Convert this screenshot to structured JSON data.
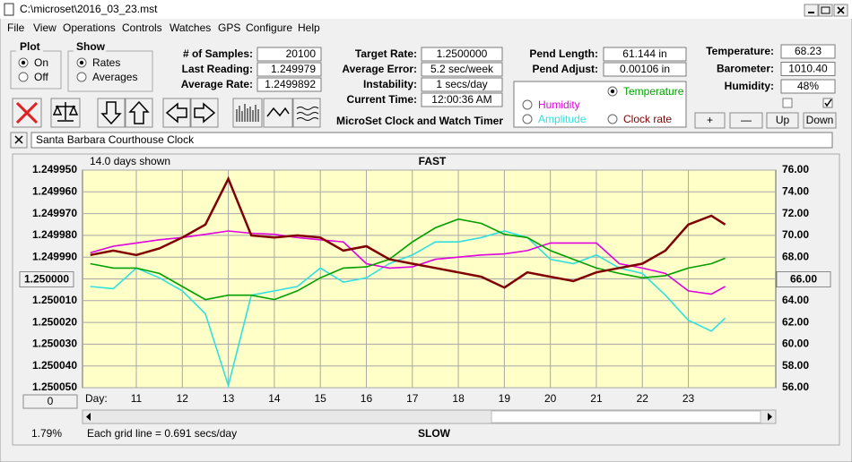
{
  "window": {
    "title": "C:\\microset\\2016_03_23.mst"
  },
  "menu": [
    "File",
    "View",
    "Operations",
    "Controls",
    "Watches",
    "GPS",
    "Configure",
    "Help"
  ],
  "plot_group": {
    "title": "Plot",
    "options": [
      "On",
      "Off"
    ]
  },
  "show_group": {
    "title": "Show",
    "options": [
      "Rates",
      "Averages"
    ]
  },
  "stats": [
    {
      "label": "# of Samples:",
      "value": "20100"
    },
    {
      "label": "Last Reading:",
      "value": "1.249979"
    },
    {
      "label": "Average Rate:",
      "value": "1.2499892"
    }
  ],
  "timing": [
    {
      "label": "Target Rate:",
      "value": "1.2500000"
    },
    {
      "label": "Average Error:",
      "value": "5.2 sec/week"
    },
    {
      "label": "Instability:",
      "value": "1 secs/day"
    },
    {
      "label": "Current Time:",
      "value": "12:00:36 AM"
    }
  ],
  "pendulum": [
    {
      "label": "Pend Length:",
      "value": "61.144 in"
    },
    {
      "label": "Pend Adjust:",
      "value": "0.00106 in"
    }
  ],
  "weather": [
    {
      "label": "Temperature:",
      "value": "68.23"
    },
    {
      "label": "Barometer:",
      "value": "1010.40"
    },
    {
      "label": "Humidity:",
      "value": "48%"
    }
  ],
  "app_title": "MicroSet Clock and Watch Timer",
  "buttons": [
    "+",
    "—",
    "Up",
    "Down"
  ],
  "clock_name": "Santa Barbara Courthouse Clock",
  "footer": {
    "zoom": "0",
    "percent": "1.79%"
  },
  "chart_data": {
    "type": "line",
    "title": "FAST",
    "bottom_label": "SLOW",
    "span_label": "14.0 days shown",
    "grid_note": "Each grid line = 0.691 secs/day",
    "x_label": "Day:",
    "x": [
      10,
      10.5,
      11,
      11.5,
      12,
      12.5,
      13,
      13.5,
      14,
      14.5,
      15,
      15.5,
      16,
      16.5,
      17,
      17.5,
      18,
      18.5,
      19,
      19.5,
      20,
      20.5,
      21,
      21.5,
      22,
      22.5,
      23,
      23.5,
      23.8
    ],
    "xlim": [
      9.83,
      24.9
    ],
    "xticks": [
      11,
      12,
      13,
      14,
      15,
      16,
      17,
      18,
      19,
      20,
      21,
      22,
      23
    ],
    "ylim": [
      1.25005,
      1.24995
    ],
    "yticks": [
      {
        "value": 1.24995,
        "label": "1.249950"
      },
      {
        "value": 1.24996,
        "label": "1.249960"
      },
      {
        "value": 1.24997,
        "label": "1.249970"
      },
      {
        "value": 1.24998,
        "label": "1.249980"
      },
      {
        "value": 1.24999,
        "label": "1.249990"
      },
      {
        "value": 1.25,
        "label": "1.250000"
      },
      {
        "value": 1.25001,
        "label": "1.250010"
      },
      {
        "value": 1.25002,
        "label": "1.250020"
      },
      {
        "value": 1.25003,
        "label": "1.250030"
      },
      {
        "value": 1.25004,
        "label": "1.250040"
      },
      {
        "value": 1.25005,
        "label": "1.250050"
      }
    ],
    "y2lim": [
      56,
      76
    ],
    "y2ticks": [
      {
        "value": 76,
        "label": "76.00"
      },
      {
        "value": 74,
        "label": "74.00"
      },
      {
        "value": 72,
        "label": "72.00"
      },
      {
        "value": 70,
        "label": "70.00"
      },
      {
        "value": 68,
        "label": "68.00"
      },
      {
        "value": 66,
        "label": "66.00"
      },
      {
        "value": 64,
        "label": "64.00"
      },
      {
        "value": 62,
        "label": "62.00"
      },
      {
        "value": 60,
        "label": "60.00"
      },
      {
        "value": 58,
        "label": "58.00"
      },
      {
        "value": 56,
        "label": "56.00"
      }
    ],
    "grid": true,
    "series": [
      {
        "name": "Clock rate",
        "color": "#800000",
        "values": [
          1.249989,
          1.249987,
          1.249989,
          1.249986,
          1.249981,
          1.249975,
          1.249954,
          1.24998,
          1.249981,
          1.24998,
          1.249981,
          1.249987,
          1.249985,
          1.249991,
          1.249993,
          1.249995,
          1.249997,
          1.249999,
          1.250004,
          1.249997,
          1.249999,
          1.250001,
          1.249997,
          1.249995,
          1.249993,
          1.249987,
          1.249975,
          1.249971,
          1.249975
        ]
      },
      {
        "name": "Temperature",
        "color": "#00a000",
        "axis": "y2",
        "values": [
          67.4,
          67.0,
          67.0,
          66.5,
          65.3,
          64.1,
          64.5,
          64.5,
          64.1,
          64.9,
          66.1,
          67.0,
          67.1,
          67.8,
          69.4,
          70.7,
          71.5,
          71.1,
          70.1,
          69.8,
          68.6,
          67.8,
          67.0,
          66.5,
          66.1,
          66.3,
          67.0,
          67.4,
          67.9
        ]
      },
      {
        "name": "Humidity",
        "color": "#e000e0",
        "axis": "y2",
        "values": [
          68.4,
          69.0,
          69.3,
          69.6,
          69.8,
          70.1,
          70.4,
          70.2,
          70.1,
          69.8,
          69.6,
          69.4,
          67.4,
          67.0,
          67.1,
          67.8,
          68.0,
          68.2,
          68.3,
          68.6,
          69.3,
          69.3,
          69.3,
          67.4,
          67.0,
          66.5,
          64.9,
          64.6,
          65.3
        ]
      },
      {
        "name": "Amplitude",
        "color": "#30e0e0",
        "axis": "y2",
        "values": [
          65.3,
          65.1,
          67.0,
          66.1,
          64.9,
          62.8,
          56.2,
          64.5,
          64.9,
          65.3,
          67.0,
          65.7,
          66.1,
          67.4,
          68.2,
          69.4,
          69.4,
          69.8,
          70.4,
          69.8,
          67.8,
          67.4,
          68.2,
          67.0,
          66.5,
          64.5,
          62.2,
          61.2,
          62.4
        ]
      }
    ]
  }
}
